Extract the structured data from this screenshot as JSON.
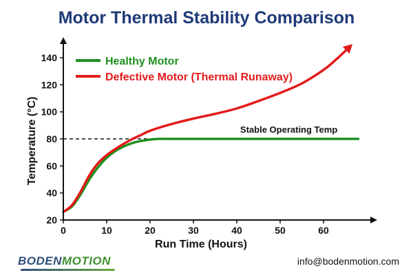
{
  "title": "Motor Thermal Stability Comparison",
  "colors": {
    "title": "#1f3a78",
    "healthy": "#1f8f1f",
    "defective": "#e31b1b",
    "reference": "#111111"
  },
  "chart_data": {
    "type": "line",
    "title": "Motor Thermal Stability Comparison",
    "xlabel": "Run Time (Hours)",
    "ylabel": "Temperature (°C)",
    "xlim": [
      0,
      70
    ],
    "ylim": [
      20,
      150
    ],
    "x_ticks": [
      0,
      10,
      20,
      30,
      40,
      50,
      60
    ],
    "y_ticks": [
      20,
      40,
      60,
      80,
      100,
      120,
      140
    ],
    "grid": false,
    "legend_position": "top-left",
    "series": [
      {
        "name": "Healthy Motor",
        "color": "#1f8f1f",
        "x": [
          0,
          2,
          4,
          6,
          8,
          10,
          12,
          14,
          16,
          18,
          20,
          22,
          24,
          30,
          40,
          50,
          60,
          68
        ],
        "y": [
          26,
          30,
          39,
          50,
          59,
          66,
          71,
          74.5,
          77,
          78.5,
          79.5,
          80,
          80,
          80,
          80,
          80,
          80,
          80
        ]
      },
      {
        "name": "Defective Motor (Thermal Runaway)",
        "color": "#e31b1b",
        "x": [
          0,
          2,
          4,
          6,
          8,
          10,
          12,
          14,
          16,
          18,
          20,
          25,
          30,
          35,
          40,
          45,
          50,
          55,
          60,
          63,
          66
        ],
        "y": [
          26,
          31,
          41,
          53,
          62,
          68,
          72.5,
          76.5,
          80,
          83,
          86,
          91,
          95,
          98.5,
          102.5,
          108,
          114,
          121,
          131,
          139,
          148
        ]
      }
    ],
    "reference_line": {
      "y": 80,
      "x_end": 22,
      "style": "dashed"
    },
    "annotations": [
      {
        "text": "Stable Operating Temp",
        "x": 52,
        "y": 80
      }
    ]
  },
  "footer": {
    "logo_part1": "BODEN",
    "logo_part2": "MOTION",
    "email": "info@bodenmotion.com"
  }
}
